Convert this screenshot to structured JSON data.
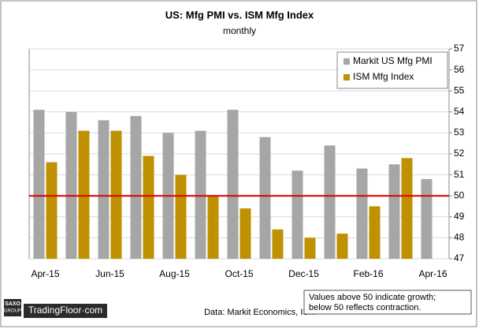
{
  "chart_data": {
    "type": "bar",
    "title": "US: Mfg PMI vs. ISM Mfg Index",
    "subtitle": "monthly",
    "categories": [
      "Apr-15",
      null,
      "Jun-15",
      null,
      "Aug-15",
      null,
      "Oct-15",
      null,
      "Dec-15",
      null,
      "Feb-16",
      null,
      "Apr-16"
    ],
    "series": [
      {
        "name": "Markit US Mfg PMI",
        "color": "#a6a6a6",
        "values": [
          54.1,
          54.0,
          53.6,
          53.8,
          53.0,
          53.1,
          54.1,
          52.8,
          51.2,
          52.4,
          51.3,
          51.5,
          50.8
        ]
      },
      {
        "name": "ISM Mfg Index",
        "color": "#bf9000",
        "values": [
          51.6,
          53.1,
          53.1,
          51.9,
          51.0,
          50.0,
          49.4,
          48.4,
          48.0,
          48.2,
          49.5,
          51.8,
          null
        ]
      }
    ],
    "ylim": [
      47,
      57
    ],
    "yticks": [
      47,
      48,
      49,
      50,
      51,
      52,
      53,
      54,
      55,
      56,
      57
    ],
    "grid": true,
    "reference_line": {
      "value": 50,
      "color": "#e00000"
    },
    "legend": "top-right",
    "source": "Data: Markit Economics, ISM",
    "note": [
      "Values above 50 indicate growth;",
      "below 50 reflects contraction."
    ]
  },
  "branding": {
    "logo": [
      "SAXO",
      "GROUP"
    ],
    "site": "TradingFloor·com"
  }
}
